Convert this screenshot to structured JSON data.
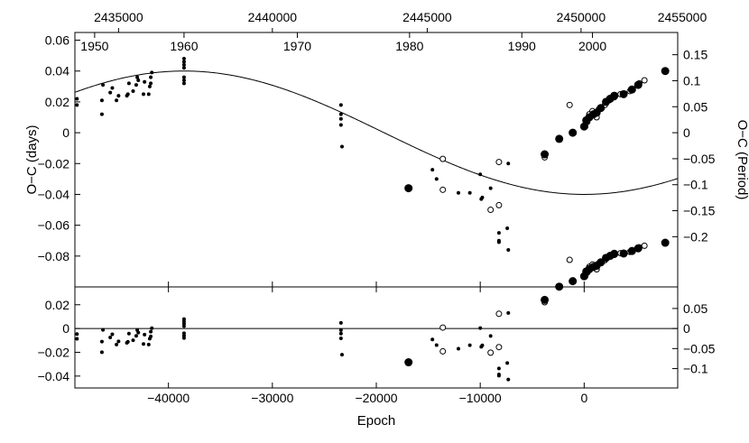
{
  "chart_data": {
    "type": "scatter",
    "title": "",
    "xlabel": "Epoch",
    "ylabel_left": "O−C (days)",
    "ylabel_right": "O−C (Period)",
    "period_days": 0.3372,
    "xlim": [
      -49000,
      9000
    ],
    "epoch_ticks": [
      -40000,
      -30000,
      -20000,
      -10000,
      0
    ],
    "epoch_tick_labels": [
      "−40000",
      "−30000",
      "−20000",
      "−10000",
      "0"
    ],
    "top_axes": {
      "jd_ticks": [
        {
          "label": "2435000",
          "epoch": -44800
        },
        {
          "label": "2440000",
          "epoch": -30000
        },
        {
          "label": "2445000",
          "epoch": -15100
        },
        {
          "label": "2450000",
          "epoch": -300
        },
        {
          "label": "2455000",
          "epoch": 14500
        }
      ],
      "year_ticks": [
        {
          "label": "1950",
          "epoch": -47100
        },
        {
          "label": "1960",
          "epoch": -38500
        },
        {
          "label": "1970",
          "epoch": -27600
        },
        {
          "label": "1980",
          "epoch": -16800
        },
        {
          "label": "1990",
          "epoch": -6000
        },
        {
          "label": "2000",
          "epoch": 800
        }
      ]
    },
    "main_panel": {
      "ylim": [
        -0.1,
        0.065
      ],
      "left_ticks": [
        0.06,
        0.04,
        0.02,
        0,
        -0.02,
        -0.04,
        -0.06,
        -0.08
      ],
      "left_tick_labels": [
        "0.06",
        "0.04",
        "0.02",
        "0",
        "−0.02",
        "−0.04",
        "−0.06",
        "−0.08"
      ],
      "right_ticks": [
        0.15,
        0.1,
        0.05,
        0,
        -0.05,
        -0.1,
        -0.15,
        -0.2
      ],
      "right_tick_labels": [
        "0.15",
        "0.1",
        "0.05",
        "0",
        "−0.05",
        "−0.1",
        "−0.15",
        "−0.2"
      ],
      "fit": {
        "model": "sinusoid",
        "offset": 0.0,
        "amplitude": 0.04,
        "period_epochs": 77000,
        "max_epoch": -38500
      }
    },
    "residual_panel": {
      "ylim": [
        -0.05,
        0.035
      ],
      "left_ticks": [
        0.02,
        0,
        -0.02,
        -0.04
      ],
      "left_tick_labels": [
        "0.02",
        "0",
        "−0.02",
        "−0.04"
      ],
      "right_ticks": [
        0.05,
        0,
        -0.05,
        -0.1
      ],
      "right_tick_labels": [
        "0.05",
        "0",
        "−0.05",
        "−0.1"
      ]
    },
    "series": [
      {
        "kind": "small-filled",
        "points": [
          [
            -48800,
            0.018
          ],
          [
            -48800,
            0.022
          ],
          [
            -46400,
            0.012
          ],
          [
            -46400,
            0.021
          ],
          [
            -46300,
            0.031
          ],
          [
            -45600,
            0.026
          ],
          [
            -45400,
            0.029
          ],
          [
            -45000,
            0.021
          ],
          [
            -44800,
            0.024
          ],
          [
            -44000,
            0.024
          ],
          [
            -43900,
            0.025
          ],
          [
            -43800,
            0.032
          ],
          [
            -43400,
            0.027
          ],
          [
            -43100,
            0.031
          ],
          [
            -43000,
            0.036
          ],
          [
            -42900,
            0.034
          ],
          [
            -42400,
            0.025
          ],
          [
            -42300,
            0.033
          ],
          [
            -41900,
            0.025
          ],
          [
            -41800,
            0.03
          ],
          [
            -41700,
            0.032
          ],
          [
            -41700,
            0.036
          ],
          [
            -41600,
            0.039
          ],
          [
            -38500,
            0.032
          ],
          [
            -38500,
            0.034
          ],
          [
            -38500,
            0.036
          ],
          [
            -38500,
            0.042
          ],
          [
            -38500,
            0.044
          ],
          [
            -38500,
            0.046
          ],
          [
            -38500,
            0.048
          ],
          [
            -23400,
            0.018
          ],
          [
            -23400,
            0.012
          ],
          [
            -23400,
            0.009
          ],
          [
            -23400,
            0.005
          ],
          [
            -23300,
            -0.009
          ],
          [
            -14600,
            -0.024
          ],
          [
            -14200,
            -0.03
          ],
          [
            -12100,
            -0.039
          ],
          [
            -11000,
            -0.039
          ],
          [
            -10000,
            -0.027
          ],
          [
            -9900,
            -0.043
          ],
          [
            -9800,
            -0.042
          ],
          [
            -9000,
            -0.036
          ],
          [
            -8200,
            -0.065
          ],
          [
            -8200,
            -0.07
          ],
          [
            -8200,
            -0.071
          ],
          [
            -7400,
            -0.062
          ],
          [
            -7300,
            -0.076
          ],
          [
            -7300,
            -0.02
          ]
        ]
      },
      {
        "kind": "open",
        "points": [
          [
            -13600,
            -0.017
          ],
          [
            -13600,
            -0.037
          ],
          [
            -9000,
            -0.05
          ],
          [
            -8200,
            -0.019
          ],
          [
            -8200,
            -0.047
          ],
          [
            -3800,
            -0.016
          ],
          [
            -1400,
            0.018
          ],
          [
            100,
            0.004
          ],
          [
            300,
            0.007
          ],
          [
            500,
            0.012
          ],
          [
            800,
            0.014
          ],
          [
            1200,
            0.01
          ],
          [
            1400,
            0.015
          ],
          [
            2000,
            0.018
          ],
          [
            2400,
            0.021
          ],
          [
            2900,
            0.023
          ],
          [
            3500,
            0.025
          ],
          [
            4400,
            0.027
          ],
          [
            5300,
            0.032
          ],
          [
            5800,
            0.034
          ]
        ]
      },
      {
        "kind": "large-filled",
        "points": [
          [
            -16900,
            -0.036
          ],
          [
            -3800,
            -0.014
          ],
          [
            -2400,
            -0.004
          ],
          [
            -1100,
            0.0
          ],
          [
            0,
            0.004
          ],
          [
            200,
            0.008
          ],
          [
            500,
            0.01
          ],
          [
            900,
            0.012
          ],
          [
            1200,
            0.013
          ],
          [
            1600,
            0.016
          ],
          [
            2100,
            0.02
          ],
          [
            2500,
            0.022
          ],
          [
            2900,
            0.024
          ],
          [
            3800,
            0.025
          ],
          [
            4600,
            0.028
          ],
          [
            5200,
            0.031
          ],
          [
            7800,
            0.04
          ]
        ]
      }
    ]
  }
}
